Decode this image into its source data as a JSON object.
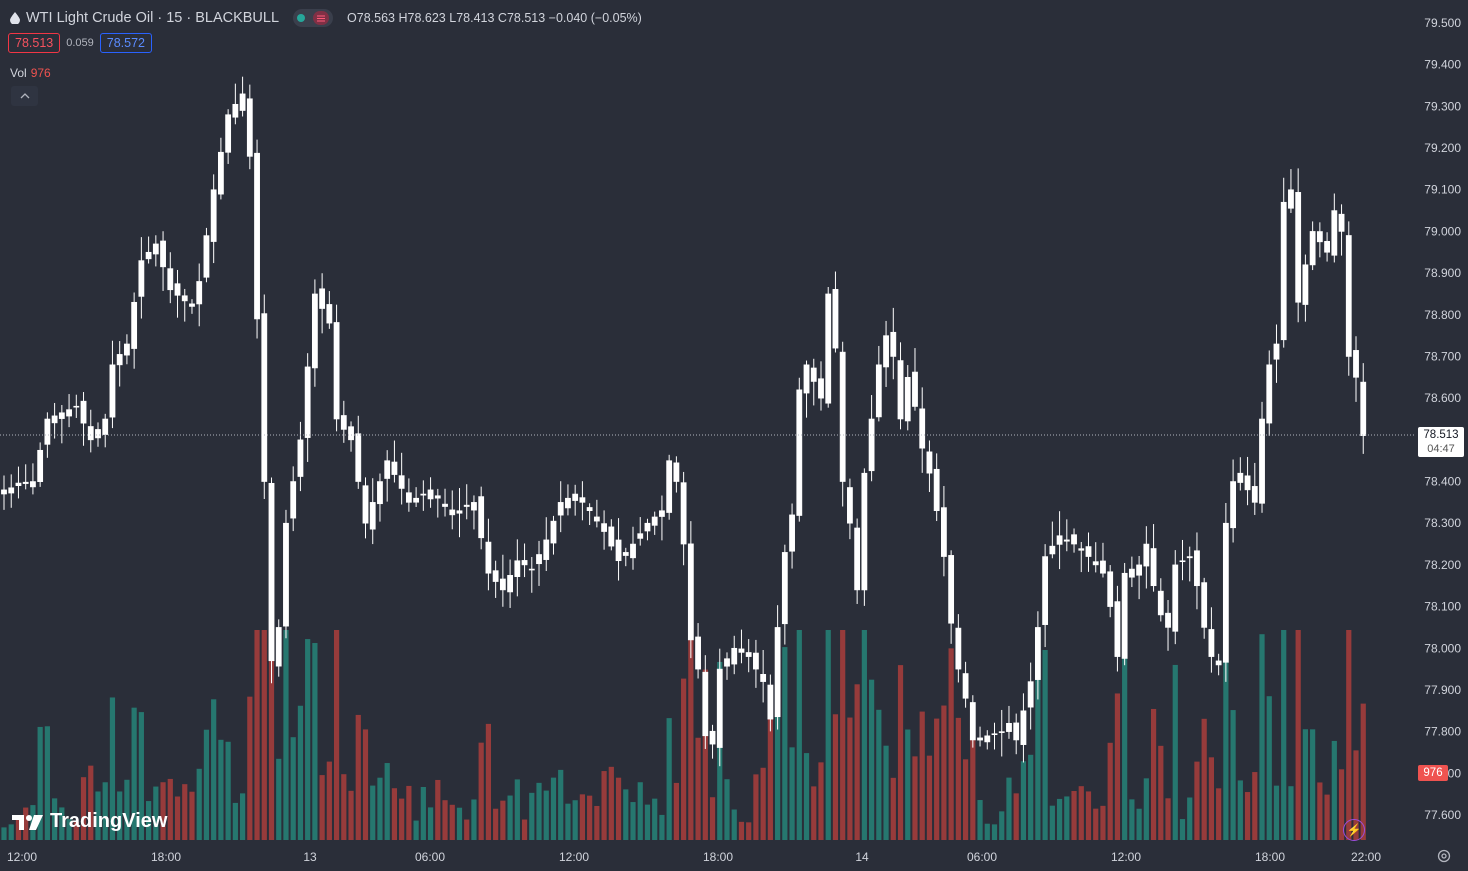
{
  "header": {
    "title": "WTI Light Crude Oil · 15 · BLACKBULL",
    "ohlc": {
      "o_label": "O",
      "o": "78.563",
      "h_label": "H",
      "h": "78.623",
      "l_label": "L",
      "l": "78.413",
      "c_label": "C",
      "c": "78.513",
      "change": "−0.040 (−0.05%)"
    }
  },
  "trade": {
    "sell": "78.513",
    "spread": "0.059",
    "buy": "78.572"
  },
  "volume": {
    "label": "Vol",
    "value": "976"
  },
  "current": {
    "price": "78.513",
    "countdown": "04:47"
  },
  "brand": {
    "name": "TradingView"
  },
  "colors": {
    "background": "#2a2e39",
    "candle": "#ffffff",
    "vol_up": "#26776f",
    "vol_down": "#973b3b",
    "text": "#d1d4dc"
  },
  "chart_data": {
    "type": "candlestick",
    "symbol": "WTI Light Crude Oil",
    "interval": "15",
    "ylim": [
      77.52,
      79.56
    ],
    "y_ticks": [
      "79.500",
      "79.400",
      "79.300",
      "79.200",
      "79.100",
      "79.000",
      "78.900",
      "78.800",
      "78.700",
      "78.600",
      "78.400",
      "78.300",
      "78.200",
      "78.100",
      "78.000",
      "77.900",
      "77.800",
      "77.700",
      "77.600"
    ],
    "x_ticks": [
      "12:00",
      "18:00",
      "13",
      "06:00",
      "12:00",
      "18:00",
      "14",
      "06:00",
      "12:00",
      "18:00",
      "22:00"
    ],
    "last_price": 78.513,
    "close_path": [
      [
        0,
        78.38
      ],
      [
        4,
        78.4
      ],
      [
        6,
        78.55
      ],
      [
        10,
        78.58
      ],
      [
        12,
        78.5
      ],
      [
        14,
        78.55
      ],
      [
        15,
        78.68
      ],
      [
        17,
        78.73
      ],
      [
        19,
        78.93
      ],
      [
        21,
        78.97
      ],
      [
        23,
        78.86
      ],
      [
        26,
        78.82
      ],
      [
        27,
        78.88
      ],
      [
        29,
        79.1
      ],
      [
        31,
        79.28
      ],
      [
        33,
        79.33
      ],
      [
        34,
        79.18
      ],
      [
        36,
        78.4
      ],
      [
        37,
        77.97
      ],
      [
        38,
        78.05
      ],
      [
        39,
        78.3
      ],
      [
        41,
        78.5
      ],
      [
        43,
        78.85
      ],
      [
        45,
        78.78
      ],
      [
        46,
        78.55
      ],
      [
        48,
        78.5
      ],
      [
        50,
        78.3
      ],
      [
        53,
        78.45
      ],
      [
        56,
        78.35
      ],
      [
        59,
        78.38
      ],
      [
        62,
        78.32
      ],
      [
        65,
        78.35
      ],
      [
        67,
        78.18
      ],
      [
        69,
        78.14
      ],
      [
        71,
        78.21
      ],
      [
        73,
        78.19
      ],
      [
        75,
        78.26
      ],
      [
        77,
        78.35
      ],
      [
        79,
        78.37
      ],
      [
        81,
        78.33
      ],
      [
        83,
        78.28
      ],
      [
        85,
        78.21
      ],
      [
        87,
        78.25
      ],
      [
        89,
        78.3
      ],
      [
        91,
        78.33
      ],
      [
        92,
        78.45
      ],
      [
        93,
        78.4
      ],
      [
        94,
        78.25
      ],
      [
        95,
        78.02
      ],
      [
        96,
        77.95
      ],
      [
        97,
        77.79
      ],
      [
        98,
        77.77
      ],
      [
        99,
        77.95
      ],
      [
        101,
        78.0
      ],
      [
        103,
        77.98
      ],
      [
        105,
        77.92
      ],
      [
        106,
        77.83
      ],
      [
        107,
        78.05
      ],
      [
        108,
        78.23
      ],
      [
        109,
        78.32
      ],
      [
        110,
        78.62
      ],
      [
        111,
        78.68
      ],
      [
        113,
        78.6
      ],
      [
        114,
        78.85
      ],
      [
        115,
        78.72
      ],
      [
        116,
        78.4
      ],
      [
        117,
        78.3
      ],
      [
        118,
        78.14
      ],
      [
        119,
        78.42
      ],
      [
        120,
        78.55
      ],
      [
        121,
        78.68
      ],
      [
        122,
        78.75
      ],
      [
        123,
        78.7
      ],
      [
        124,
        78.55
      ],
      [
        125,
        78.65
      ],
      [
        126,
        78.58
      ],
      [
        127,
        78.48
      ],
      [
        128,
        78.42
      ],
      [
        129,
        78.33
      ],
      [
        130,
        78.22
      ],
      [
        131,
        78.06
      ],
      [
        132,
        77.95
      ],
      [
        133,
        77.88
      ],
      [
        134,
        77.78
      ],
      [
        136,
        77.79
      ],
      [
        138,
        77.8
      ],
      [
        139,
        77.82
      ],
      [
        140,
        77.78
      ],
      [
        141,
        77.85
      ],
      [
        142,
        77.92
      ],
      [
        143,
        78.05
      ],
      [
        144,
        78.22
      ],
      [
        146,
        78.27
      ],
      [
        148,
        78.25
      ],
      [
        150,
        78.22
      ],
      [
        152,
        78.18
      ],
      [
        153,
        78.1
      ],
      [
        154,
        77.98
      ],
      [
        155,
        78.18
      ],
      [
        157,
        78.2
      ],
      [
        158,
        78.25
      ],
      [
        159,
        78.15
      ],
      [
        160,
        78.08
      ],
      [
        161,
        78.05
      ],
      [
        162,
        78.2
      ],
      [
        164,
        78.22
      ],
      [
        165,
        78.15
      ],
      [
        166,
        78.05
      ],
      [
        167,
        77.98
      ],
      [
        168,
        77.96
      ],
      [
        169,
        78.3
      ],
      [
        170,
        78.4
      ],
      [
        171,
        78.42
      ],
      [
        172,
        78.38
      ],
      [
        173,
        78.35
      ],
      [
        174,
        78.55
      ],
      [
        175,
        78.68
      ],
      [
        176,
        78.73
      ],
      [
        177,
        79.07
      ],
      [
        178,
        79.1
      ],
      [
        179,
        78.83
      ],
      [
        180,
        78.92
      ],
      [
        181,
        79.0
      ],
      [
        183,
        78.95
      ],
      [
        184,
        79.05
      ],
      [
        185,
        79.0
      ],
      [
        186,
        78.7
      ],
      [
        187,
        78.65
      ],
      [
        188,
        78.51
      ]
    ],
    "volume_bars": "126 bars, green (up) and red (down); peak about 210 px tall near 13 00:00"
  }
}
